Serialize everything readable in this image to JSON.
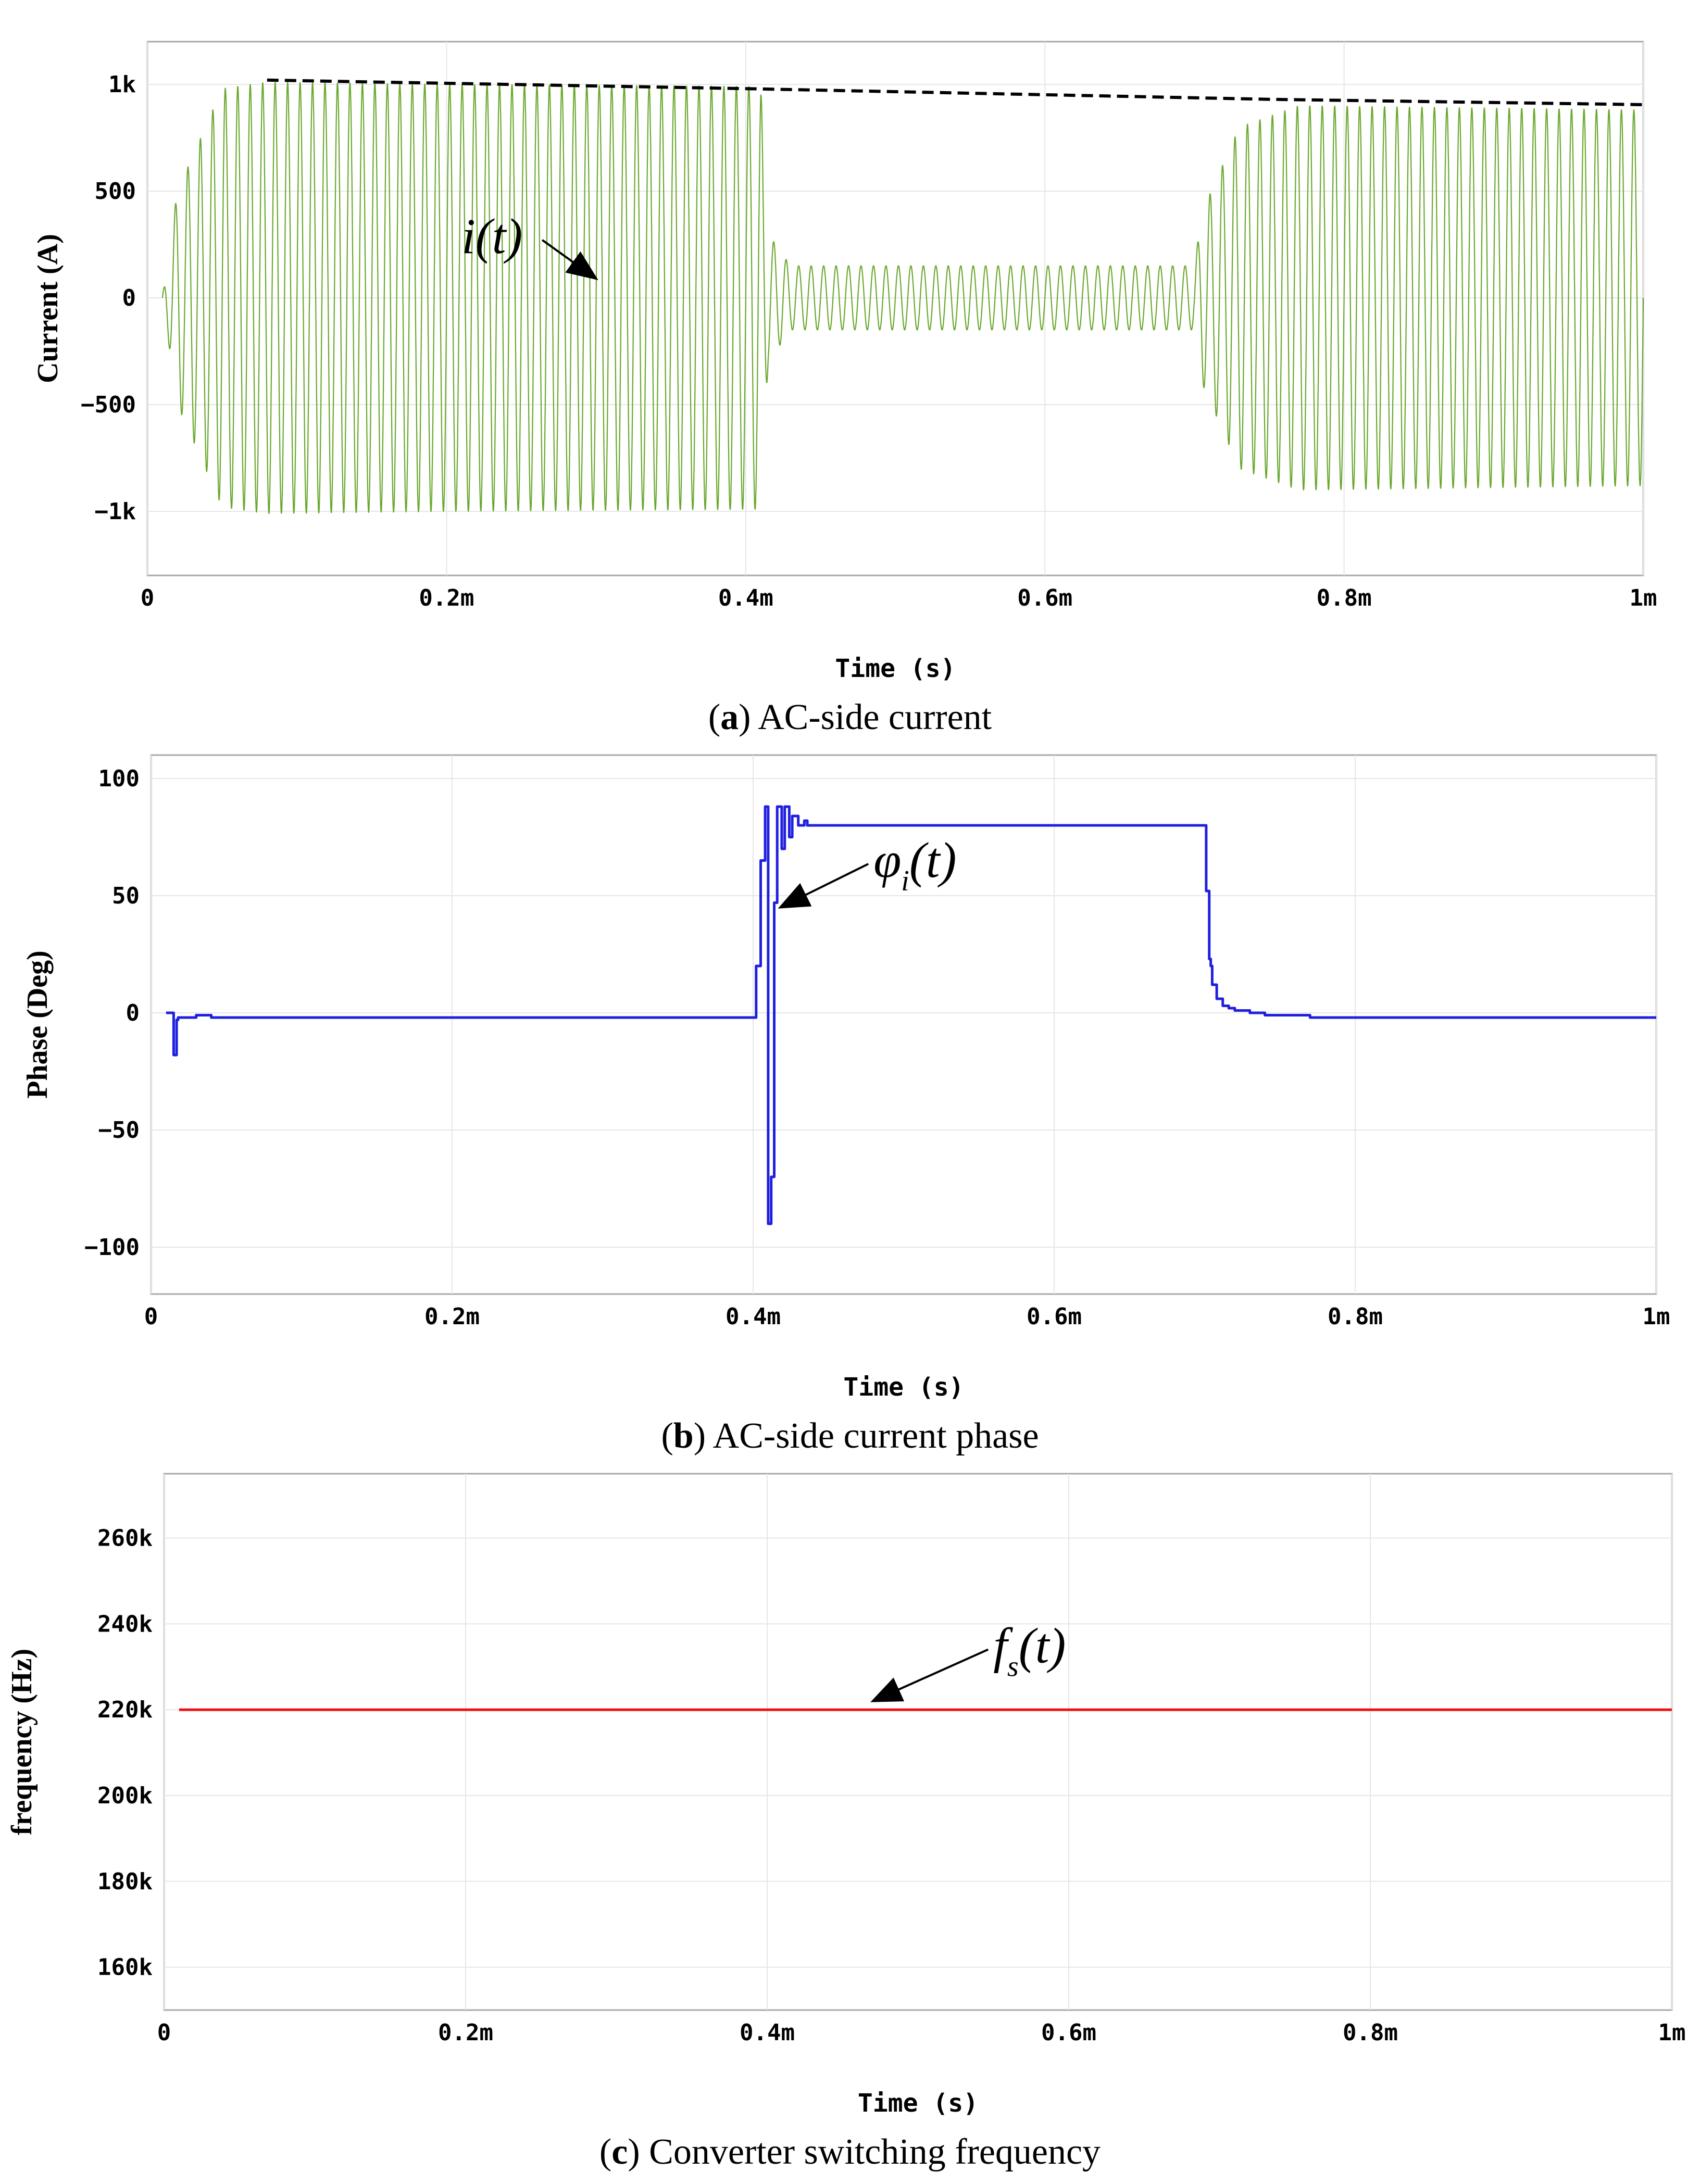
{
  "chart_data": [
    {
      "type": "line",
      "panel": "a",
      "caption_letter": "a",
      "caption_text": "AC-side current",
      "xlabel": "Time (s)",
      "ylabel": "Current (A)",
      "xlim": [
        0,
        1.0
      ],
      "ylim": [
        -1300,
        1200
      ],
      "x_unit_scale": "ms",
      "xticks": [
        {
          "v": 0,
          "label": "0"
        },
        {
          "v": 0.2,
          "label": "0.2m"
        },
        {
          "v": 0.4,
          "label": "0.4m"
        },
        {
          "v": 0.6,
          "label": "0.6m"
        },
        {
          "v": 0.8,
          "label": "0.8m"
        },
        {
          "v": 1.0,
          "label": "1m"
        }
      ],
      "yticks": [
        {
          "v": 1000,
          "label": "1k"
        },
        {
          "v": 500,
          "label": "500"
        },
        {
          "v": 0,
          "label": "0"
        },
        {
          "v": -500,
          "label": "−500"
        },
        {
          "v": -1000,
          "label": "−1k"
        }
      ],
      "grid": true,
      "series": [
        {
          "role": "oscillating current i(t)",
          "color": "#6aa82e",
          "carrier_cycles_per_ms": 120,
          "envelope": [
            [
              0.01,
              0
            ],
            [
              0.02,
              500
            ],
            [
              0.05,
              980
            ],
            [
              0.08,
              1010
            ],
            [
              0.2,
              1000
            ],
            [
              0.41,
              990
            ],
            [
              0.415,
              300
            ],
            [
              0.43,
              150
            ],
            [
              0.7,
              150
            ],
            [
              0.705,
              400
            ],
            [
              0.73,
              800
            ],
            [
              0.77,
              900
            ],
            [
              1.0,
              880
            ]
          ]
        },
        {
          "role": "envelope (dashed)",
          "color": "#000000",
          "dashed": true,
          "x": [
            0.08,
            0.4,
            0.75,
            1.0
          ],
          "y": [
            1020,
            980,
            930,
            905
          ]
        }
      ],
      "annotation": {
        "text": "i(t)",
        "x": 0.21,
        "y": 210,
        "arrow_to": [
          0.3,
          90
        ]
      }
    },
    {
      "type": "line",
      "panel": "b",
      "caption_letter": "b",
      "caption_text": "AC-side current phase",
      "xlabel": "Time (s)",
      "ylabel": "Phase (Deg)",
      "xlim": [
        0,
        1.0
      ],
      "ylim": [
        -120,
        110
      ],
      "xticks": [
        {
          "v": 0,
          "label": "0"
        },
        {
          "v": 0.2,
          "label": "0.2m"
        },
        {
          "v": 0.4,
          "label": "0.4m"
        },
        {
          "v": 0.6,
          "label": "0.6m"
        },
        {
          "v": 0.8,
          "label": "0.8m"
        },
        {
          "v": 1.0,
          "label": "1m"
        }
      ],
      "yticks": [
        {
          "v": 100,
          "label": "100"
        },
        {
          "v": 50,
          "label": "50"
        },
        {
          "v": 0,
          "label": "0"
        },
        {
          "v": -50,
          "label": "−50"
        },
        {
          "v": -100,
          "label": "−100"
        }
      ],
      "grid": true,
      "series": [
        {
          "role": "current phase",
          "color": "#1f1fe0",
          "x": [
            0.01,
            0.014,
            0.015,
            0.016,
            0.017,
            0.018,
            0.02,
            0.025,
            0.03,
            0.035,
            0.04,
            0.1,
            0.2,
            0.3,
            0.4,
            0.402,
            0.403,
            0.405,
            0.406,
            0.408,
            0.409,
            0.41,
            0.411,
            0.412,
            0.413,
            0.414,
            0.415,
            0.416,
            0.418,
            0.419,
            0.42,
            0.421,
            0.422,
            0.424,
            0.425,
            0.426,
            0.428,
            0.43,
            0.432,
            0.434,
            0.436,
            0.44,
            0.45,
            0.5,
            0.6,
            0.7,
            0.701,
            0.702,
            0.703,
            0.704,
            0.705,
            0.708,
            0.712,
            0.716,
            0.72,
            0.73,
            0.74,
            0.75,
            0.77,
            0.8,
            0.9,
            1.0
          ],
          "y": [
            0,
            0,
            -18,
            -18,
            -3,
            -2,
            -2,
            -2,
            -1,
            -1,
            -2,
            -2,
            -2,
            -2,
            -2,
            20,
            20,
            65,
            65,
            88,
            88,
            -90,
            -90,
            -70,
            -70,
            47,
            47,
            88,
            88,
            70,
            70,
            88,
            88,
            75,
            75,
            84,
            84,
            80,
            80,
            82,
            80,
            80,
            80,
            80,
            80,
            80,
            52,
            52,
            23,
            20,
            12,
            6,
            3,
            2,
            1,
            0,
            -1,
            -1,
            -2,
            -2,
            -2,
            -2
          ]
        }
      ],
      "annotation": {
        "text": "φ",
        "subscript": "i",
        "suffix": "(t)",
        "x": 0.48,
        "y": 58,
        "arrow_to": [
          0.418,
          45
        ]
      }
    },
    {
      "type": "line",
      "panel": "c",
      "caption_letter": "c",
      "caption_text": "Converter switching frequency",
      "xlabel": "Time (s)",
      "ylabel": "frequency (Hz)",
      "xlim": [
        0,
        1.0
      ],
      "ylim": [
        150000,
        275000
      ],
      "xticks": [
        {
          "v": 0,
          "label": "0"
        },
        {
          "v": 0.2,
          "label": "0.2m"
        },
        {
          "v": 0.4,
          "label": "0.4m"
        },
        {
          "v": 0.6,
          "label": "0.6m"
        },
        {
          "v": 0.8,
          "label": "0.8m"
        },
        {
          "v": 1.0,
          "label": "1m"
        }
      ],
      "yticks": [
        {
          "v": 260000,
          "label": "260k"
        },
        {
          "v": 240000,
          "label": "240k"
        },
        {
          "v": 220000,
          "label": "220k"
        },
        {
          "v": 200000,
          "label": "200k"
        },
        {
          "v": 180000,
          "label": "180k"
        },
        {
          "v": 160000,
          "label": "160k"
        }
      ],
      "grid": true,
      "series": [
        {
          "role": "switching frequency",
          "color": "#ee1111",
          "x": [
            0.01,
            1.0
          ],
          "y": [
            220000,
            220000
          ]
        }
      ],
      "annotation": {
        "text": "f",
        "subscript": "s",
        "suffix": "(t)",
        "x": 0.55,
        "y": 231000,
        "arrow_to": [
          0.47,
          222000
        ]
      }
    }
  ]
}
